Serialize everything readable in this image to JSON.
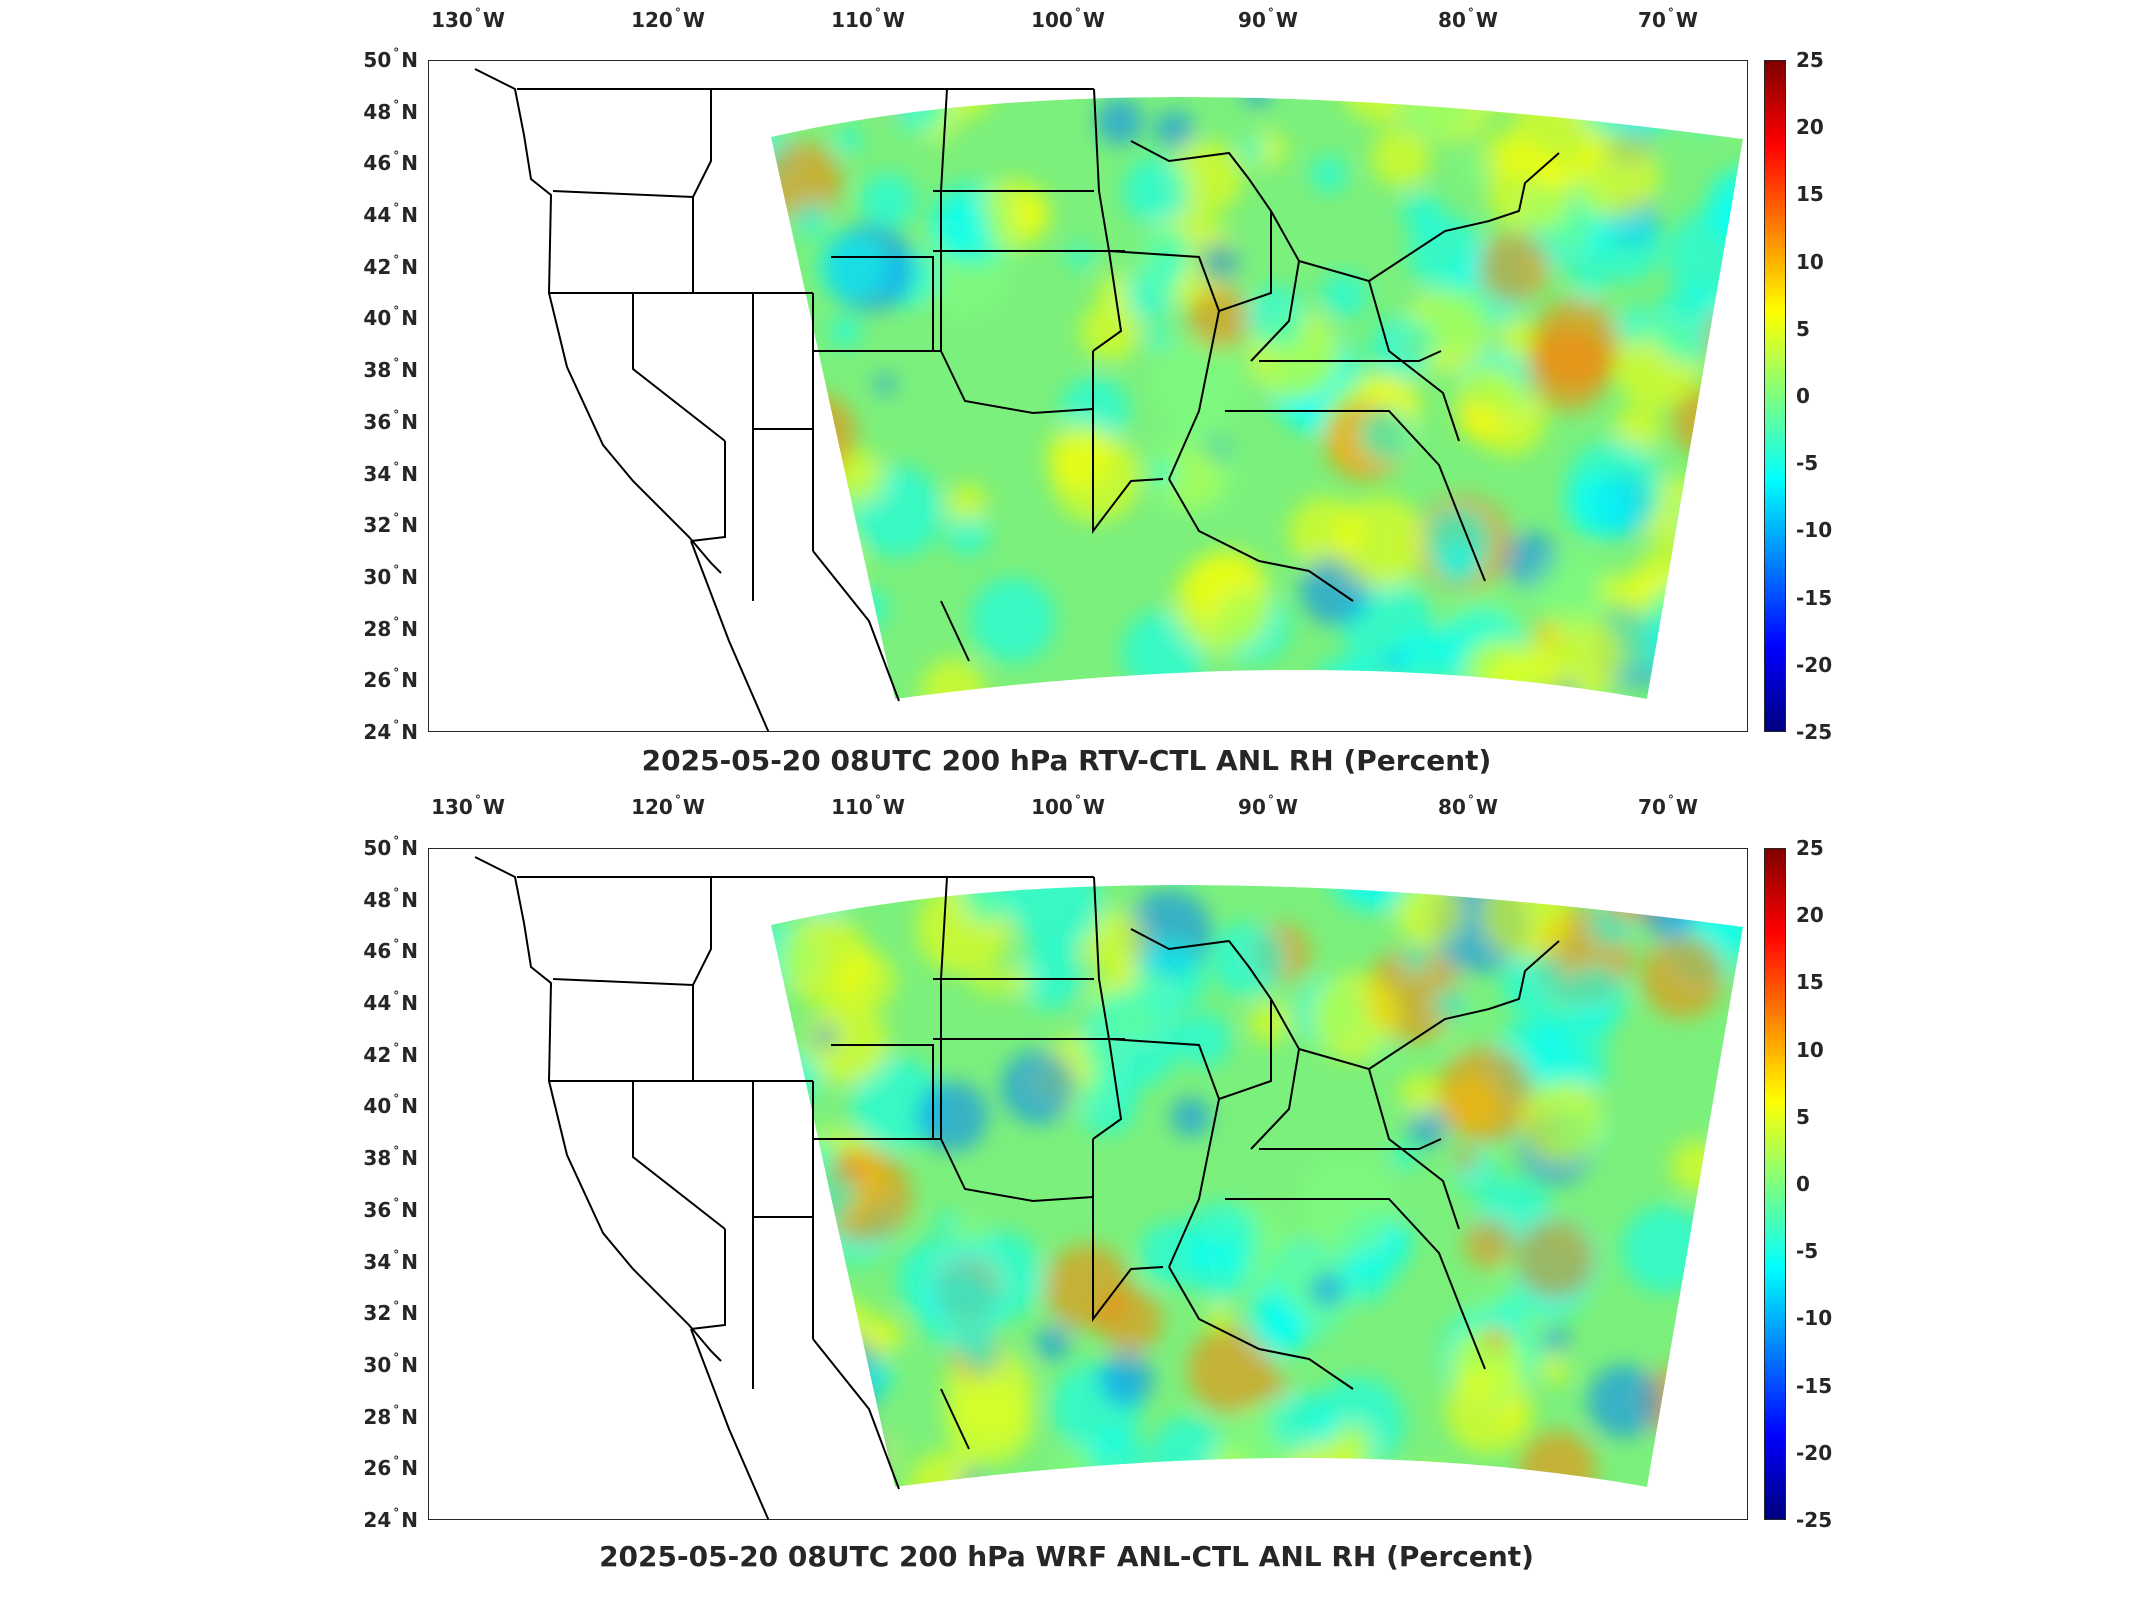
{
  "panels": [
    {
      "title": "2025-05-20 08UTC 200 hPa RTV-CTL ANL RH (Percent)"
    },
    {
      "title": "2025-05-20 08UTC 200 hPa WRF ANL-CTL ANL RH (Percent)"
    }
  ],
  "axes": {
    "longitude_labels": [
      {
        "value": "130",
        "hemi": "W"
      },
      {
        "value": "120",
        "hemi": "W"
      },
      {
        "value": "110",
        "hemi": "W"
      },
      {
        "value": "100",
        "hemi": "W"
      },
      {
        "value": "90",
        "hemi": "W"
      },
      {
        "value": "80",
        "hemi": "W"
      },
      {
        "value": "70",
        "hemi": "W"
      }
    ],
    "latitude_labels": [
      {
        "value": "50",
        "hemi": "N"
      },
      {
        "value": "48",
        "hemi": "N"
      },
      {
        "value": "46",
        "hemi": "N"
      },
      {
        "value": "44",
        "hemi": "N"
      },
      {
        "value": "42",
        "hemi": "N"
      },
      {
        "value": "40",
        "hemi": "N"
      },
      {
        "value": "38",
        "hemi": "N"
      },
      {
        "value": "36",
        "hemi": "N"
      },
      {
        "value": "34",
        "hemi": "N"
      },
      {
        "value": "32",
        "hemi": "N"
      },
      {
        "value": "30",
        "hemi": "N"
      },
      {
        "value": "28",
        "hemi": "N"
      },
      {
        "value": "26",
        "hemi": "N"
      },
      {
        "value": "24",
        "hemi": "N"
      }
    ],
    "degree_symbol": "°"
  },
  "colorbar": {
    "ticks": [
      "25",
      "20",
      "15",
      "10",
      "5",
      "0",
      "-5",
      "-10",
      "-15",
      "-20",
      "-25"
    ],
    "min": -25,
    "max": 25,
    "colormap": "jet",
    "colors": [
      "#00007f",
      "#0000ff",
      "#007fff",
      "#00ffff",
      "#7fff7f",
      "#ffff00",
      "#ff7f00",
      "#ff0000",
      "#7f0000"
    ]
  },
  "map": {
    "extent": {
      "lon_min": -132,
      "lon_max": -66,
      "lat_min": 24,
      "lat_max": 50
    },
    "field_base_color": "#7cf07c",
    "coastline_color": "#000000"
  }
}
